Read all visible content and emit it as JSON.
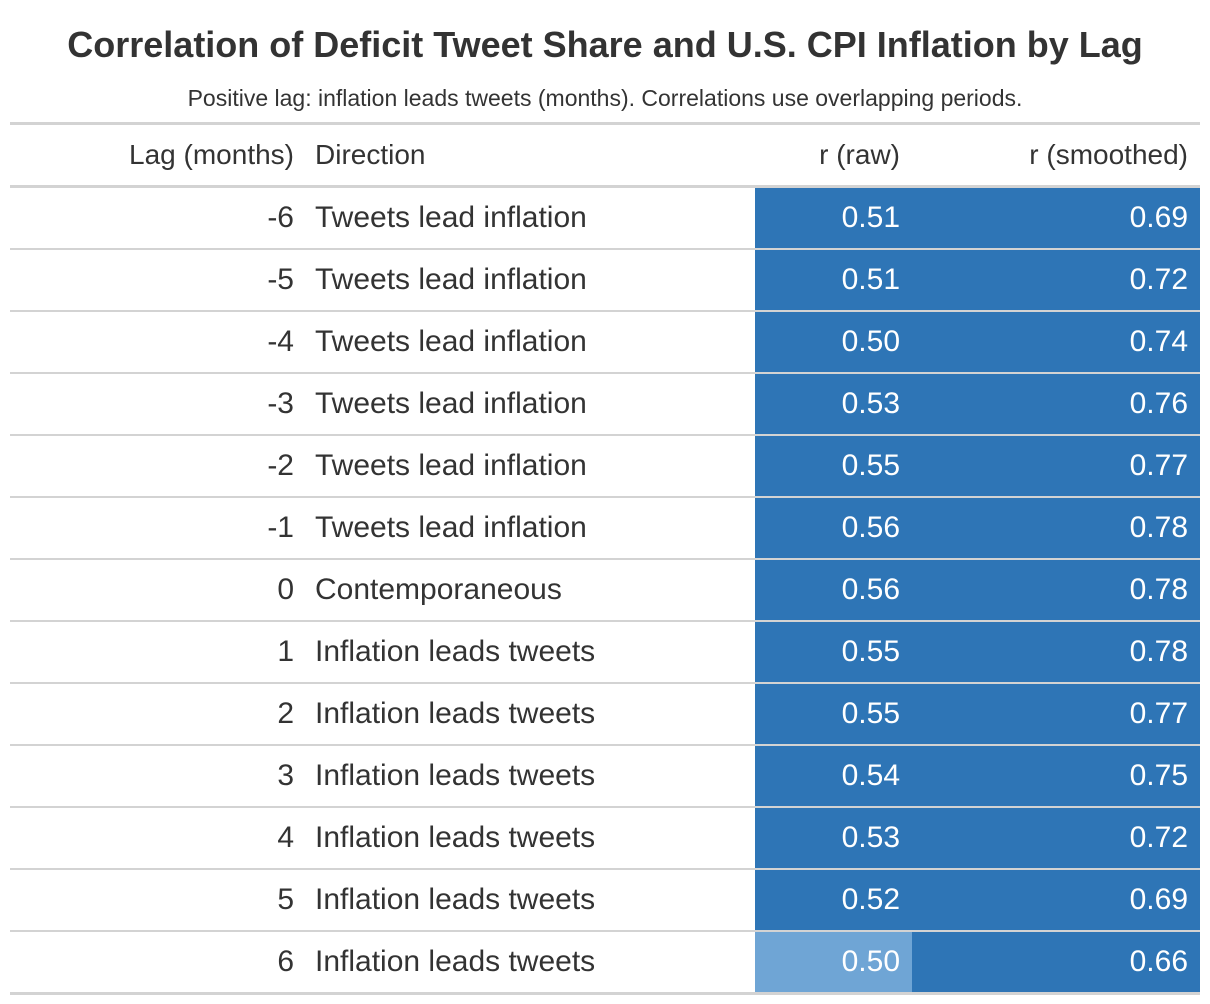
{
  "title": "Correlation of Deficit Tweet Share and U.S. CPI Inflation by Lag",
  "subtitle": "Positive lag: inflation leads tweets (months). Correlations use overlapping periods.",
  "colors": {
    "strong": "#2e75b6",
    "light": "#6fa5d5",
    "rule": "#d3d3d3",
    "text": "#333333"
  },
  "chart_data": {
    "type": "table",
    "title": "Correlation of Deficit Tweet Share and U.S. CPI Inflation by Lag",
    "subtitle": "Positive lag: inflation leads tweets (months). Correlations use overlapping periods.",
    "columns": [
      "Lag (months)",
      "Direction",
      "r (raw)",
      "r (smoothed)"
    ],
    "rows": [
      {
        "lag": "-6",
        "direction": "Tweets lead inflation",
        "r_raw": "0.51",
        "r_smoothed": "0.69"
      },
      {
        "lag": "-5",
        "direction": "Tweets lead inflation",
        "r_raw": "0.51",
        "r_smoothed": "0.72"
      },
      {
        "lag": "-4",
        "direction": "Tweets lead inflation",
        "r_raw": "0.50",
        "r_smoothed": "0.74"
      },
      {
        "lag": "-3",
        "direction": "Tweets lead inflation",
        "r_raw": "0.53",
        "r_smoothed": "0.76"
      },
      {
        "lag": "-2",
        "direction": "Tweets lead inflation",
        "r_raw": "0.55",
        "r_smoothed": "0.77"
      },
      {
        "lag": "-1",
        "direction": "Tweets lead inflation",
        "r_raw": "0.56",
        "r_smoothed": "0.78"
      },
      {
        "lag": "0",
        "direction": "Contemporaneous",
        "r_raw": "0.56",
        "r_smoothed": "0.78"
      },
      {
        "lag": "1",
        "direction": "Inflation leads tweets",
        "r_raw": "0.55",
        "r_smoothed": "0.78"
      },
      {
        "lag": "2",
        "direction": "Inflation leads tweets",
        "r_raw": "0.55",
        "r_smoothed": "0.77"
      },
      {
        "lag": "3",
        "direction": "Inflation leads tweets",
        "r_raw": "0.54",
        "r_smoothed": "0.75"
      },
      {
        "lag": "4",
        "direction": "Inflation leads tweets",
        "r_raw": "0.53",
        "r_smoothed": "0.72"
      },
      {
        "lag": "5",
        "direction": "Inflation leads tweets",
        "r_raw": "0.52",
        "r_smoothed": "0.69"
      },
      {
        "lag": "6",
        "direction": "Inflation leads tweets",
        "r_raw": "0.50",
        "r_smoothed": "0.66"
      }
    ]
  }
}
